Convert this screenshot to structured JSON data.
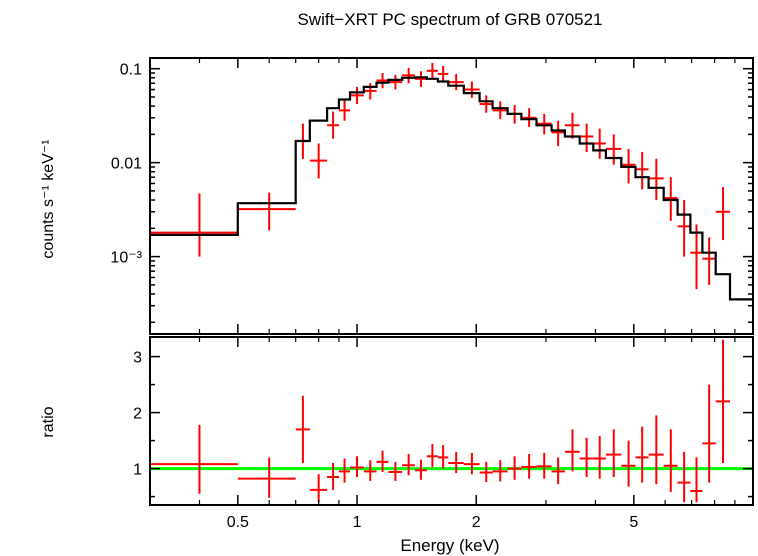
{
  "chart_data": [
    {
      "panel": "spectrum",
      "type": "scatter",
      "title": "Swift−XRT PC spectrum of GRB 070521",
      "xlabel": "",
      "ylabel": "counts s⁻¹ keV⁻¹",
      "xscale": "log",
      "yscale": "log",
      "xlim": [
        0.3,
        10
      ],
      "ylim": [
        0.00015,
        0.13
      ],
      "x_tick_labels": [],
      "y_ticks": [
        {
          "value": 0.1,
          "label": "0.1"
        },
        {
          "value": 0.01,
          "label": "0.01"
        },
        {
          "value": 0.001,
          "label": "10⁻³"
        }
      ],
      "series": [
        {
          "role": "data",
          "color": "#ff0000",
          "points": [
            {
              "x": 0.4,
              "xlo": 0.3,
              "xhi": 0.5,
              "y": 0.0018,
              "ylo": 0.001,
              "yhi": 0.0047
            },
            {
              "x": 0.6,
              "xlo": 0.5,
              "xhi": 0.7,
              "y": 0.0032,
              "ylo": 0.0019,
              "yhi": 0.0048
            },
            {
              "x": 0.73,
              "xlo": 0.7,
              "xhi": 0.76,
              "y": 0.017,
              "ylo": 0.011,
              "yhi": 0.026
            },
            {
              "x": 0.8,
              "xlo": 0.76,
              "xhi": 0.84,
              "y": 0.0105,
              "ylo": 0.0068,
              "yhi": 0.016
            },
            {
              "x": 0.87,
              "xlo": 0.84,
              "xhi": 0.9,
              "y": 0.025,
              "ylo": 0.018,
              "yhi": 0.035
            },
            {
              "x": 0.93,
              "xlo": 0.9,
              "xhi": 0.96,
              "y": 0.036,
              "ylo": 0.028,
              "yhi": 0.046
            },
            {
              "x": 1.0,
              "xlo": 0.96,
              "xhi": 1.04,
              "y": 0.052,
              "ylo": 0.042,
              "yhi": 0.064
            },
            {
              "x": 1.08,
              "xlo": 1.04,
              "xhi": 1.12,
              "y": 0.058,
              "ylo": 0.047,
              "yhi": 0.07
            },
            {
              "x": 1.16,
              "xlo": 1.12,
              "xhi": 1.2,
              "y": 0.075,
              "ylo": 0.062,
              "yhi": 0.09
            },
            {
              "x": 1.25,
              "xlo": 1.2,
              "xhi": 1.3,
              "y": 0.072,
              "ylo": 0.06,
              "yhi": 0.086
            },
            {
              "x": 1.35,
              "xlo": 1.3,
              "xhi": 1.4,
              "y": 0.085,
              "ylo": 0.07,
              "yhi": 0.102
            },
            {
              "x": 1.45,
              "xlo": 1.4,
              "xhi": 1.5,
              "y": 0.078,
              "ylo": 0.064,
              "yhi": 0.094
            },
            {
              "x": 1.55,
              "xlo": 1.5,
              "xhi": 1.6,
              "y": 0.095,
              "ylo": 0.078,
              "yhi": 0.115
            },
            {
              "x": 1.65,
              "xlo": 1.6,
              "xhi": 1.7,
              "y": 0.088,
              "ylo": 0.072,
              "yhi": 0.107
            },
            {
              "x": 1.78,
              "xlo": 1.7,
              "xhi": 1.86,
              "y": 0.072,
              "ylo": 0.059,
              "yhi": 0.088
            },
            {
              "x": 1.95,
              "xlo": 1.86,
              "xhi": 2.04,
              "y": 0.06,
              "ylo": 0.049,
              "yhi": 0.073
            },
            {
              "x": 2.12,
              "xlo": 2.04,
              "xhi": 2.2,
              "y": 0.042,
              "ylo": 0.034,
              "yhi": 0.052
            },
            {
              "x": 2.3,
              "xlo": 2.2,
              "xhi": 2.4,
              "y": 0.036,
              "ylo": 0.029,
              "yhi": 0.045
            },
            {
              "x": 2.5,
              "xlo": 2.4,
              "xhi": 2.6,
              "y": 0.033,
              "ylo": 0.026,
              "yhi": 0.041
            },
            {
              "x": 2.72,
              "xlo": 2.6,
              "xhi": 2.84,
              "y": 0.03,
              "ylo": 0.024,
              "yhi": 0.038
            },
            {
              "x": 2.97,
              "xlo": 2.84,
              "xhi": 3.1,
              "y": 0.026,
              "ylo": 0.02,
              "yhi": 0.033
            },
            {
              "x": 3.22,
              "xlo": 3.1,
              "xhi": 3.35,
              "y": 0.021,
              "ylo": 0.015,
              "yhi": 0.028
            },
            {
              "x": 3.5,
              "xlo": 3.35,
              "xhi": 3.65,
              "y": 0.025,
              "ylo": 0.018,
              "yhi": 0.034
            },
            {
              "x": 3.8,
              "xlo": 3.65,
              "xhi": 3.95,
              "y": 0.019,
              "ylo": 0.013,
              "yhi": 0.026
            },
            {
              "x": 4.1,
              "xlo": 3.95,
              "xhi": 4.25,
              "y": 0.016,
              "ylo": 0.011,
              "yhi": 0.023
            },
            {
              "x": 4.45,
              "xlo": 4.25,
              "xhi": 4.65,
              "y": 0.014,
              "ylo": 0.0095,
              "yhi": 0.02
            },
            {
              "x": 4.85,
              "xlo": 4.65,
              "xhi": 5.05,
              "y": 0.0095,
              "ylo": 0.006,
              "yhi": 0.014
            },
            {
              "x": 5.25,
              "xlo": 5.05,
              "xhi": 5.45,
              "y": 0.0085,
              "ylo": 0.0052,
              "yhi": 0.013
            },
            {
              "x": 5.7,
              "xlo": 5.45,
              "xhi": 5.95,
              "y": 0.0068,
              "ylo": 0.004,
              "yhi": 0.011
            },
            {
              "x": 6.2,
              "xlo": 5.95,
              "xhi": 6.45,
              "y": 0.0042,
              "ylo": 0.0024,
              "yhi": 0.007
            },
            {
              "x": 6.7,
              "xlo": 6.45,
              "xhi": 6.95,
              "y": 0.0021,
              "ylo": 0.001,
              "yhi": 0.004
            },
            {
              "x": 7.2,
              "xlo": 6.95,
              "xhi": 7.45,
              "y": 0.0011,
              "ylo": 0.00045,
              "yhi": 0.0022
            },
            {
              "x": 7.75,
              "xlo": 7.45,
              "xhi": 8.05,
              "y": 0.00095,
              "ylo": 0.0005,
              "yhi": 0.0016
            },
            {
              "x": 8.4,
              "xlo": 8.05,
              "xhi": 8.75,
              "y": 0.003,
              "ylo": 0.0015,
              "yhi": 0.0055
            }
          ]
        },
        {
          "role": "model",
          "type": "step",
          "color": "#000000",
          "x_edges": [
            0.3,
            0.5,
            0.7,
            0.76,
            0.84,
            0.9,
            0.96,
            1.04,
            1.12,
            1.2,
            1.3,
            1.4,
            1.5,
            1.6,
            1.7,
            1.86,
            2.04,
            2.2,
            2.4,
            2.6,
            2.84,
            3.1,
            3.35,
            3.65,
            3.95,
            4.25,
            4.65,
            5.05,
            5.45,
            5.95,
            6.45,
            6.95,
            7.45,
            8.05,
            8.75,
            10.0
          ],
          "y": [
            0.0017,
            0.0037,
            0.017,
            0.028,
            0.038,
            0.047,
            0.056,
            0.064,
            0.071,
            0.076,
            0.08,
            0.081,
            0.078,
            0.073,
            0.066,
            0.055,
            0.045,
            0.038,
            0.033,
            0.029,
            0.025,
            0.022,
            0.019,
            0.016,
            0.0135,
            0.0112,
            0.009,
            0.007,
            0.0054,
            0.004,
            0.0028,
            0.0018,
            0.0011,
            0.00065,
            0.00035
          ]
        }
      ]
    },
    {
      "panel": "ratio",
      "type": "scatter",
      "title": "",
      "xlabel": "Energy (keV)",
      "ylabel": "ratio",
      "xscale": "log",
      "yscale": "linear",
      "xlim": [
        0.3,
        10
      ],
      "ylim": [
        0.35,
        3.35
      ],
      "x_ticks": [
        {
          "value": 0.5,
          "label": "0.5"
        },
        {
          "value": 1,
          "label": "1"
        },
        {
          "value": 2,
          "label": "2"
        },
        {
          "value": 5,
          "label": "5"
        }
      ],
      "y_ticks": [
        {
          "value": 1,
          "label": "1"
        },
        {
          "value": 2,
          "label": "2"
        },
        {
          "value": 3,
          "label": "3"
        }
      ],
      "reference_line": {
        "y": 1,
        "color": "#00ff00"
      },
      "series": [
        {
          "role": "ratio",
          "color": "#ff0000",
          "points": [
            {
              "x": 0.4,
              "xlo": 0.3,
              "xhi": 0.5,
              "y": 1.08,
              "ylo": 0.55,
              "yhi": 1.78
            },
            {
              "x": 0.6,
              "xlo": 0.5,
              "xhi": 0.7,
              "y": 0.82,
              "ylo": 0.48,
              "yhi": 1.2
            },
            {
              "x": 0.73,
              "xlo": 0.7,
              "xhi": 0.76,
              "y": 1.7,
              "ylo": 1.1,
              "yhi": 2.3
            },
            {
              "x": 0.8,
              "xlo": 0.76,
              "xhi": 0.84,
              "y": 0.62,
              "ylo": 0.4,
              "yhi": 0.9
            },
            {
              "x": 0.87,
              "xlo": 0.84,
              "xhi": 0.9,
              "y": 0.85,
              "ylo": 0.62,
              "yhi": 1.1
            },
            {
              "x": 0.93,
              "xlo": 0.9,
              "xhi": 0.96,
              "y": 0.95,
              "ylo": 0.75,
              "yhi": 1.18
            },
            {
              "x": 1.0,
              "xlo": 0.96,
              "xhi": 1.04,
              "y": 1.02,
              "ylo": 0.85,
              "yhi": 1.22
            },
            {
              "x": 1.08,
              "xlo": 1.04,
              "xhi": 1.12,
              "y": 0.95,
              "ylo": 0.78,
              "yhi": 1.15
            },
            {
              "x": 1.16,
              "xlo": 1.12,
              "xhi": 1.2,
              "y": 1.12,
              "ylo": 0.94,
              "yhi": 1.32
            },
            {
              "x": 1.25,
              "xlo": 1.2,
              "xhi": 1.3,
              "y": 0.94,
              "ylo": 0.78,
              "yhi": 1.12
            },
            {
              "x": 1.35,
              "xlo": 1.3,
              "xhi": 1.4,
              "y": 1.06,
              "ylo": 0.88,
              "yhi": 1.26
            },
            {
              "x": 1.45,
              "xlo": 1.4,
              "xhi": 1.5,
              "y": 0.97,
              "ylo": 0.8,
              "yhi": 1.16
            },
            {
              "x": 1.55,
              "xlo": 1.5,
              "xhi": 1.6,
              "y": 1.22,
              "ylo": 1.02,
              "yhi": 1.44
            },
            {
              "x": 1.65,
              "xlo": 1.6,
              "xhi": 1.7,
              "y": 1.2,
              "ylo": 1.0,
              "yhi": 1.42
            },
            {
              "x": 1.78,
              "xlo": 1.7,
              "xhi": 1.86,
              "y": 1.1,
              "ylo": 0.92,
              "yhi": 1.3
            },
            {
              "x": 1.95,
              "xlo": 1.86,
              "xhi": 2.04,
              "y": 1.08,
              "ylo": 0.9,
              "yhi": 1.28
            },
            {
              "x": 2.12,
              "xlo": 2.04,
              "xhi": 2.2,
              "y": 0.93,
              "ylo": 0.76,
              "yhi": 1.12
            },
            {
              "x": 2.3,
              "xlo": 2.2,
              "xhi": 2.4,
              "y": 0.95,
              "ylo": 0.77,
              "yhi": 1.15
            },
            {
              "x": 2.5,
              "xlo": 2.4,
              "xhi": 2.6,
              "y": 1.0,
              "ylo": 0.8,
              "yhi": 1.22
            },
            {
              "x": 2.72,
              "xlo": 2.6,
              "xhi": 2.84,
              "y": 1.03,
              "ylo": 0.82,
              "yhi": 1.26
            },
            {
              "x": 2.97,
              "xlo": 2.84,
              "xhi": 3.1,
              "y": 1.04,
              "ylo": 0.82,
              "yhi": 1.28
            },
            {
              "x": 3.22,
              "xlo": 3.1,
              "xhi": 3.35,
              "y": 0.95,
              "ylo": 0.72,
              "yhi": 1.2
            },
            {
              "x": 3.5,
              "xlo": 3.35,
              "xhi": 3.65,
              "y": 1.3,
              "ylo": 0.95,
              "yhi": 1.7
            },
            {
              "x": 3.8,
              "xlo": 3.65,
              "xhi": 3.95,
              "y": 1.18,
              "ylo": 0.85,
              "yhi": 1.55
            },
            {
              "x": 4.1,
              "xlo": 3.95,
              "xhi": 4.25,
              "y": 1.18,
              "ylo": 0.82,
              "yhi": 1.58
            },
            {
              "x": 4.45,
              "xlo": 4.25,
              "xhi": 4.65,
              "y": 1.25,
              "ylo": 0.85,
              "yhi": 1.7
            },
            {
              "x": 4.85,
              "xlo": 4.65,
              "xhi": 5.05,
              "y": 1.05,
              "ylo": 0.68,
              "yhi": 1.5
            },
            {
              "x": 5.25,
              "xlo": 5.05,
              "xhi": 5.45,
              "y": 1.2,
              "ylo": 0.75,
              "yhi": 1.75
            },
            {
              "x": 5.7,
              "xlo": 5.45,
              "xhi": 5.95,
              "y": 1.25,
              "ylo": 0.72,
              "yhi": 1.95
            },
            {
              "x": 6.2,
              "xlo": 5.95,
              "xhi": 6.45,
              "y": 1.05,
              "ylo": 0.58,
              "yhi": 1.7
            },
            {
              "x": 6.7,
              "xlo": 6.45,
              "xhi": 6.95,
              "y": 0.75,
              "ylo": 0.4,
              "yhi": 1.3
            },
            {
              "x": 7.2,
              "xlo": 6.95,
              "xhi": 7.45,
              "y": 0.6,
              "ylo": 0.4,
              "yhi": 1.2
            },
            {
              "x": 7.75,
              "xlo": 7.45,
              "xhi": 8.05,
              "y": 1.45,
              "ylo": 0.75,
              "yhi": 2.5
            },
            {
              "x": 8.4,
              "xlo": 8.05,
              "xhi": 8.75,
              "y": 2.2,
              "ylo": 1.1,
              "yhi": 3.3
            }
          ]
        }
      ]
    }
  ]
}
